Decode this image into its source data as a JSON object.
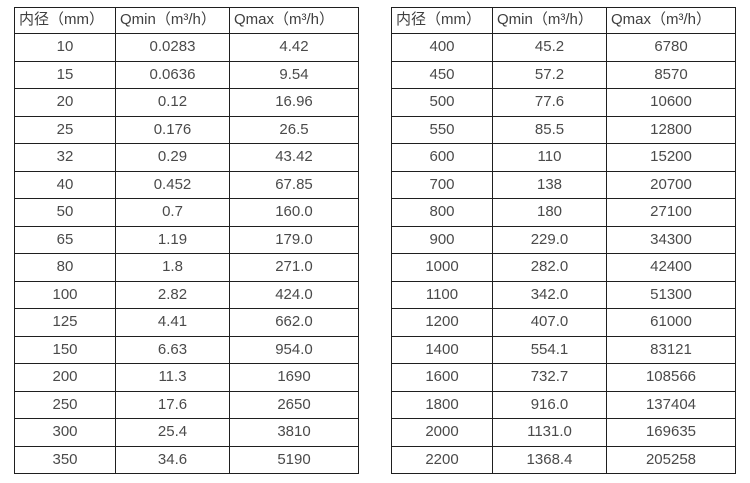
{
  "colors": {
    "bg": "#ffffff",
    "border": "#1f1f1f",
    "text": "#4a4a4a",
    "header-text": "#3f3f3f"
  },
  "chart_data": [
    {
      "type": "table",
      "name": "flow-spec-table-small-diameters",
      "columns": [
        "内径（mm）",
        "Qmin（m³/h）",
        "Qmax（m³/h）"
      ],
      "rows": [
        [
          "10",
          "0.0283",
          "4.42"
        ],
        [
          "15",
          "0.0636",
          "9.54"
        ],
        [
          "20",
          "0.12",
          "16.96"
        ],
        [
          "25",
          "0.176",
          "26.5"
        ],
        [
          "32",
          "0.29",
          "43.42"
        ],
        [
          "40",
          "0.452",
          "67.85"
        ],
        [
          "50",
          "0.7",
          "160.0"
        ],
        [
          "65",
          "1.19",
          "179.0"
        ],
        [
          "80",
          "1.8",
          "271.0"
        ],
        [
          "100",
          "2.82",
          "424.0"
        ],
        [
          "125",
          "4.41",
          "662.0"
        ],
        [
          "150",
          "6.63",
          "954.0"
        ],
        [
          "200",
          "11.3",
          "1690"
        ],
        [
          "250",
          "17.6",
          "2650"
        ],
        [
          "300",
          "25.4",
          "3810"
        ],
        [
          "350",
          "34.6",
          "5190"
        ]
      ]
    },
    {
      "type": "table",
      "name": "flow-spec-table-large-diameters",
      "columns": [
        "内径（mm）",
        "Qmin（m³/h）",
        "Qmax（m³/h）"
      ],
      "rows": [
        [
          "400",
          "45.2",
          "6780"
        ],
        [
          "450",
          "57.2",
          "8570"
        ],
        [
          "500",
          "77.6",
          "10600"
        ],
        [
          "550",
          "85.5",
          "12800"
        ],
        [
          "600",
          "110",
          "15200"
        ],
        [
          "700",
          "138",
          "20700"
        ],
        [
          "800",
          "180",
          "27100"
        ],
        [
          "900",
          "229.0",
          "34300"
        ],
        [
          "1000",
          "282.0",
          "42400"
        ],
        [
          "1100",
          "342.0",
          "51300"
        ],
        [
          "1200",
          "407.0",
          "61000"
        ],
        [
          "1400",
          "554.1",
          "83121"
        ],
        [
          "1600",
          "732.7",
          "108566"
        ],
        [
          "1800",
          "916.0",
          "137404"
        ],
        [
          "2000",
          "1131.0",
          "169635"
        ],
        [
          "2200",
          "1368.4",
          "205258"
        ]
      ]
    }
  ]
}
